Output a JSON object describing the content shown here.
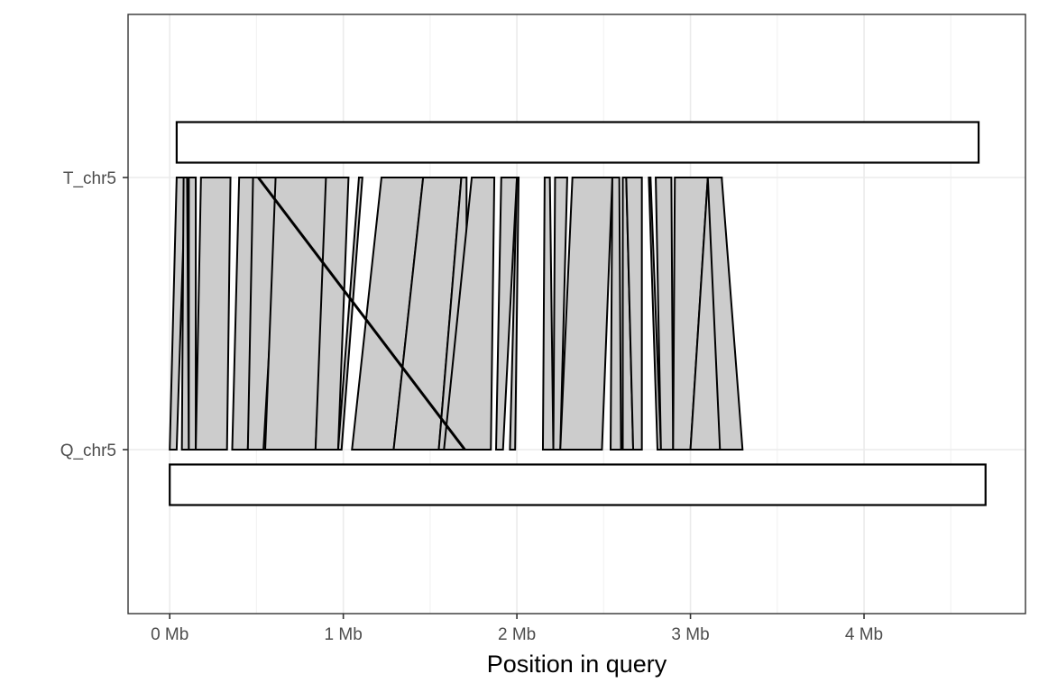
{
  "chart_data": {
    "type": "synteny",
    "title": "",
    "xlabel": "Position in query",
    "ylabel": "",
    "xlim": [
      -0.24,
      4.93
    ],
    "x_unit": "Mb",
    "x_ticks": [
      {
        "value": 0,
        "label": "0 Mb"
      },
      {
        "value": 1,
        "label": "1 Mb"
      },
      {
        "value": 2,
        "label": "2 Mb"
      },
      {
        "value": 3,
        "label": "3 Mb"
      },
      {
        "value": 4,
        "label": "4 Mb"
      }
    ],
    "y_categories": [
      "Q_chr5",
      "T_chr5"
    ],
    "grid": true,
    "colors": {
      "panel_border": "#333333",
      "grid_major": "#ebebeb",
      "grid_minor": "#f3f3f3",
      "chromosome_fill": "#ffffff",
      "chromosome_stroke": "#000000",
      "link_fill": "#cccccc",
      "link_stroke": "#000000"
    },
    "chromosomes": [
      {
        "name": "T_chr5",
        "start": 0.04,
        "end": 4.66
      },
      {
        "name": "Q_chr5",
        "start": 0.0,
        "end": 4.7
      }
    ],
    "links": [
      {
        "q_start": 0.0,
        "q_end": 0.04,
        "t_start": 0.04,
        "t_end": 0.09,
        "inverted": false
      },
      {
        "q_start": 0.07,
        "q_end": 0.11,
        "t_start": 0.08,
        "t_end": 0.1,
        "inverted": false
      },
      {
        "q_start": 0.11,
        "q_end": 0.15,
        "t_start": 0.11,
        "t_end": 0.15,
        "inverted": false
      },
      {
        "q_start": 0.15,
        "q_end": 0.33,
        "t_start": 0.18,
        "t_end": 0.35,
        "inverted": false
      },
      {
        "q_start": 0.36,
        "q_end": 0.45,
        "t_start": 0.4,
        "t_end": 0.5,
        "inverted": false
      },
      {
        "q_start": 0.45,
        "q_end": 0.54,
        "t_start": 0.48,
        "t_end": 0.63,
        "inverted": false
      },
      {
        "q_start": 0.55,
        "q_end": 0.84,
        "t_start": 0.61,
        "t_end": 0.91,
        "inverted": false
      },
      {
        "q_start": 0.84,
        "q_end": 0.97,
        "t_start": 0.9,
        "t_end": 1.03,
        "inverted": false
      },
      {
        "q_start": 0.97,
        "q_end": 0.99,
        "t_start": 1.09,
        "t_end": 1.11,
        "inverted": false
      },
      {
        "q_start": 1.05,
        "q_end": 1.29,
        "t_start": 1.22,
        "t_end": 1.46,
        "inverted": false
      },
      {
        "q_start": 1.29,
        "q_end": 1.55,
        "t_start": 1.46,
        "t_end": 1.68,
        "inverted": false
      },
      {
        "q_start": 1.55,
        "q_end": 1.71,
        "t_start": 1.68,
        "t_end": 1.71,
        "inverted": false
      },
      {
        "q_start": 1.58,
        "q_end": 1.85,
        "t_start": 1.74,
        "t_end": 1.87,
        "inverted": false
      },
      {
        "q_start": 1.88,
        "q_end": 1.92,
        "t_start": 1.91,
        "t_end": 2.0,
        "inverted": false
      },
      {
        "q_start": 1.96,
        "q_end": 1.99,
        "t_start": 2.0,
        "t_end": 2.01,
        "inverted": false
      },
      {
        "q_start": 2.15,
        "q_end": 2.21,
        "t_start": 2.16,
        "t_end": 2.19,
        "inverted": false
      },
      {
        "q_start": 2.21,
        "q_end": 2.25,
        "t_start": 2.22,
        "t_end": 2.29,
        "inverted": false
      },
      {
        "q_start": 2.25,
        "q_end": 2.49,
        "t_start": 2.32,
        "t_end": 2.55,
        "inverted": false
      },
      {
        "q_start": 2.54,
        "q_end": 2.6,
        "t_start": 2.55,
        "t_end": 2.59,
        "inverted": false
      },
      {
        "q_start": 2.61,
        "q_end": 2.67,
        "t_start": 2.61,
        "t_end": 2.63,
        "inverted": false
      },
      {
        "q_start": 2.67,
        "q_end": 2.72,
        "t_start": 2.63,
        "t_end": 2.72,
        "inverted": false
      },
      {
        "q_start": 2.81,
        "q_end": 2.83,
        "t_start": 2.76,
        "t_end": 2.77,
        "inverted": false
      },
      {
        "q_start": 2.83,
        "q_end": 2.9,
        "t_start": 2.8,
        "t_end": 2.89,
        "inverted": false
      },
      {
        "q_start": 2.9,
        "q_end": 3.0,
        "t_start": 2.91,
        "t_end": 3.1,
        "inverted": false
      },
      {
        "q_start": 3.0,
        "q_end": 3.17,
        "t_start": 3.1,
        "t_end": 3.18,
        "inverted": false
      },
      {
        "q_start": 3.17,
        "q_end": 3.3,
        "t_start": 3.1,
        "t_end": 3.18,
        "inverted": false
      },
      {
        "q_start": 1.7,
        "q_end": 1.7,
        "t_start": 0.51,
        "t_end": 0.51,
        "inverted": true
      }
    ]
  }
}
